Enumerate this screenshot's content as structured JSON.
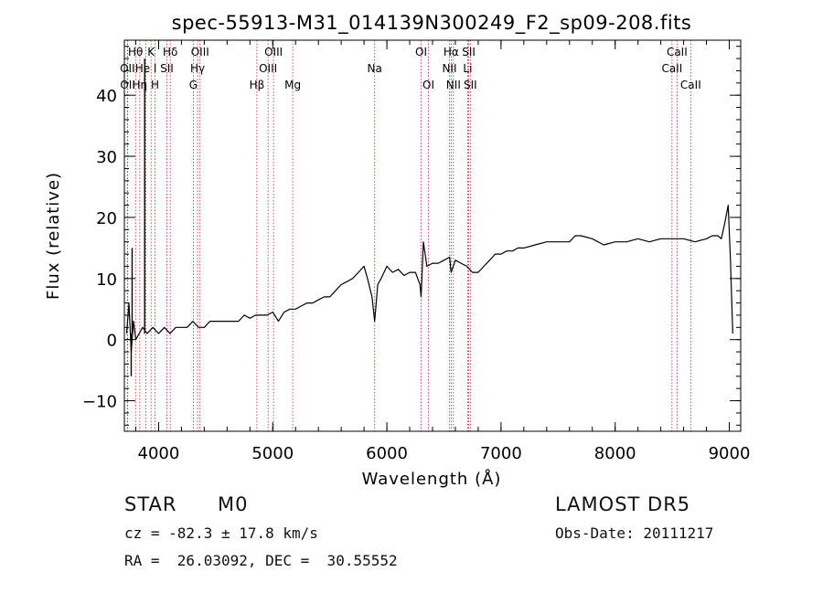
{
  "chart_data": {
    "type": "line",
    "title": "spec-55913-M31_014139N300249_F2_sp09-208.fits",
    "xlabel": "Wavelength (Å)",
    "ylabel": "Flux (relative)",
    "xlim": [
      3700,
      9100
    ],
    "ylim": [
      -15,
      49
    ],
    "xticks": [
      4000,
      5000,
      6000,
      7000,
      8000,
      9000
    ],
    "yticks": [
      -10,
      0,
      10,
      20,
      30,
      40
    ],
    "grid": false,
    "line_color": "#000000",
    "marker_color": "#cc2020",
    "spectrum": {
      "x": [
        3720,
        3740,
        3760,
        3780,
        3800,
        3830,
        3860,
        3900,
        3950,
        4000,
        4050,
        4100,
        4150,
        4200,
        4250,
        4300,
        4350,
        4400,
        4450,
        4500,
        4550,
        4600,
        4650,
        4700,
        4750,
        4800,
        4850,
        4900,
        4950,
        5000,
        5050,
        5100,
        5150,
        5200,
        5250,
        5300,
        5350,
        5400,
        5450,
        5500,
        5550,
        5600,
        5650,
        5700,
        5750,
        5800,
        5830,
        5870,
        5893,
        5920,
        5950,
        6000,
        6050,
        6100,
        6150,
        6200,
        6250,
        6290,
        6300,
        6320,
        6350,
        6400,
        6450,
        6500,
        6550,
        6563,
        6600,
        6650,
        6700,
        6750,
        6800,
        6850,
        6900,
        6950,
        7000,
        7050,
        7100,
        7150,
        7200,
        7300,
        7400,
        7500,
        7600,
        7650,
        7700,
        7800,
        7900,
        8000,
        8100,
        8200,
        8300,
        8400,
        8500,
        8600,
        8700,
        8800,
        8850,
        8900,
        8930,
        8960,
        8990,
        9010,
        9030
      ],
      "y": [
        1,
        6,
        -2,
        3,
        0,
        1,
        2,
        1,
        2,
        1,
        2,
        1,
        2,
        2,
        2,
        3,
        2,
        2,
        3,
        3,
        3,
        3,
        3,
        3,
        4,
        3.5,
        4,
        4,
        4,
        4.5,
        3,
        4.5,
        5,
        5,
        5.5,
        6,
        6,
        6.5,
        7,
        7,
        8,
        9,
        9.5,
        10,
        11,
        12,
        10,
        7,
        3,
        9,
        10,
        12,
        11,
        11.5,
        10.5,
        11,
        11,
        9,
        7,
        16,
        12,
        12.5,
        12.5,
        13,
        13.5,
        11,
        13,
        12.5,
        12,
        11,
        11,
        12,
        13,
        14,
        14,
        14.5,
        14.5,
        15,
        15,
        15.5,
        16,
        16,
        16,
        17,
        17,
        16.5,
        15.5,
        16,
        16,
        16.5,
        16,
        16.5,
        16.5,
        16.5,
        16,
        16.5,
        17,
        17,
        16.5,
        19,
        22,
        13,
        1
      ]
    },
    "spikes": [
      {
        "x": 3878,
        "y": 46
      },
      {
        "x": 3768,
        "y": 15
      },
      {
        "x": 3760,
        "y": -6
      }
    ],
    "lines": [
      {
        "label": "Hθ",
        "x": 3798,
        "row": 1
      },
      {
        "label": "OII",
        "x": 3727,
        "row": 2
      },
      {
        "label": "OII",
        "x": 3729,
        "row": 3
      },
      {
        "label": "Hη",
        "x": 3835,
        "row": 3
      },
      {
        "label": "He I",
        "x": 3889,
        "row": 2
      },
      {
        "label": "K",
        "x": 3934,
        "row": 1
      },
      {
        "label": "H",
        "x": 3969,
        "row": 3
      },
      {
        "label": "Hδ",
        "x": 4102,
        "row": 1
      },
      {
        "label": "SII",
        "x": 4072,
        "row": 2
      },
      {
        "label": "OIII",
        "x": 4363,
        "row": 1
      },
      {
        "label": "Hγ",
        "x": 4341,
        "row": 2
      },
      {
        "label": "G",
        "x": 4304,
        "row": 3
      },
      {
        "label": "OIII",
        "x": 5007,
        "row": 1
      },
      {
        "label": "OIII",
        "x": 4959,
        "row": 2
      },
      {
        "label": "Hβ",
        "x": 4861,
        "row": 3
      },
      {
        "label": "Mg",
        "x": 5175,
        "row": 3
      },
      {
        "label": "Na",
        "x": 5893,
        "row": 2
      },
      {
        "label": "OI",
        "x": 6300,
        "row": 1
      },
      {
        "label": "OI",
        "x": 6364,
        "row": 3
      },
      {
        "label": "Hα",
        "x": 6563,
        "row": 1
      },
      {
        "label": "NII",
        "x": 6548,
        "row": 2
      },
      {
        "label": "NII",
        "x": 6583,
        "row": 3
      },
      {
        "label": "SII",
        "x": 6717,
        "row": 1
      },
      {
        "label": "Li",
        "x": 6708,
        "row": 2
      },
      {
        "label": "SII",
        "x": 6731,
        "row": 3
      },
      {
        "label": "CaII",
        "x": 8542,
        "row": 1
      },
      {
        "label": "CaII",
        "x": 8498,
        "row": 2
      },
      {
        "label": "CaII",
        "x": 8662,
        "row": 3
      }
    ]
  },
  "info": {
    "class": "STAR",
    "subclass": "M0",
    "survey": "LAMOST DR5",
    "cz": "cz = -82.3 ± 17.8 km/s",
    "obs_date": "Obs-Date: 20111217",
    "radec": "RA =  26.03092, DEC =  30.55552"
  }
}
